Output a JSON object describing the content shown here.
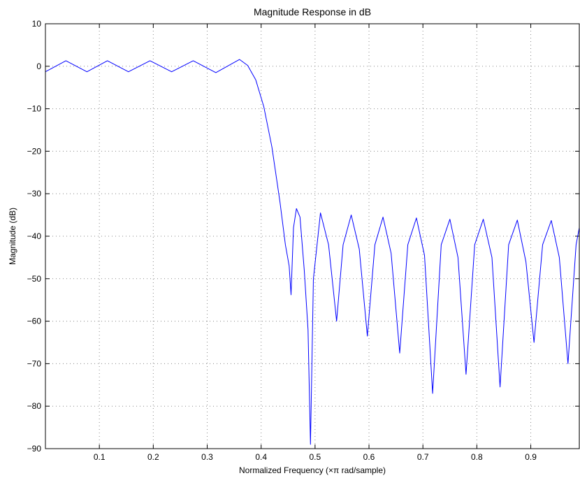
{
  "chart_data": {
    "type": "line",
    "title": "Magnitude Response in dB",
    "xlabel": "Normalized Frequency  (×π rad/sample)",
    "ylabel": "Magnitude (dB)",
    "xlim": [
      0,
      0.99
    ],
    "ylim": [
      -90,
      10
    ],
    "x_ticks": [
      0.1,
      0.2,
      0.3,
      0.4,
      0.5,
      0.6,
      0.7,
      0.8,
      0.9
    ],
    "y_ticks": [
      10,
      0,
      -10,
      -20,
      -30,
      -40,
      -50,
      -60,
      -70,
      -80,
      -90
    ],
    "x_tick_labels": [
      "0.1",
      "0.2",
      "0.3",
      "0.4",
      "0.5",
      "0.6",
      "0.7",
      "0.8",
      "0.9"
    ],
    "y_tick_labels": [
      "10",
      "0",
      "−10",
      "−20",
      "−30",
      "−40",
      "−50",
      "−60",
      "−70",
      "−80",
      "−90"
    ],
    "grid": "dotted",
    "line_color": "#0000ff",
    "series": [
      {
        "x": [
          0.0,
          0.038,
          0.077,
          0.115,
          0.154,
          0.194,
          0.234,
          0.274,
          0.316,
          0.36,
          0.375,
          0.39,
          0.405,
          0.42,
          0.435,
          0.445,
          0.452,
          0.4555,
          0.46,
          0.4655,
          0.472,
          0.48,
          0.487,
          0.4915,
          0.497,
          0.51,
          0.525,
          0.54,
          0.552,
          0.567,
          0.582,
          0.597,
          0.611,
          0.626,
          0.641,
          0.657,
          0.672,
          0.688,
          0.703,
          0.718,
          0.734,
          0.75,
          0.765,
          0.78,
          0.796,
          0.812,
          0.828,
          0.843,
          0.859,
          0.875,
          0.891,
          0.906,
          0.922,
          0.938,
          0.953,
          0.969,
          0.984,
          0.99
        ],
        "y": [
          -1.3,
          1.3,
          -1.3,
          1.3,
          -1.3,
          1.3,
          -1.3,
          1.3,
          -1.5,
          1.6,
          0.2,
          -3.2,
          -9.5,
          -19.0,
          -32.0,
          -42.0,
          -47.0,
          -53.8,
          -38.0,
          -33.5,
          -35.5,
          -48.0,
          -62.0,
          -89.0,
          -50.0,
          -34.5,
          -42.0,
          -60.0,
          -42.0,
          -35.0,
          -43.0,
          -63.5,
          -42.0,
          -35.5,
          -44.0,
          -67.5,
          -42.0,
          -35.7,
          -44.5,
          -77.0,
          -42.0,
          -36.0,
          -45.0,
          -72.5,
          -42.0,
          -36.0,
          -45.0,
          -75.5,
          -42.0,
          -36.2,
          -46.0,
          -65.0,
          -42.0,
          -36.3,
          -45.0,
          -70.0,
          -42.0,
          -38.0
        ]
      }
    ]
  }
}
